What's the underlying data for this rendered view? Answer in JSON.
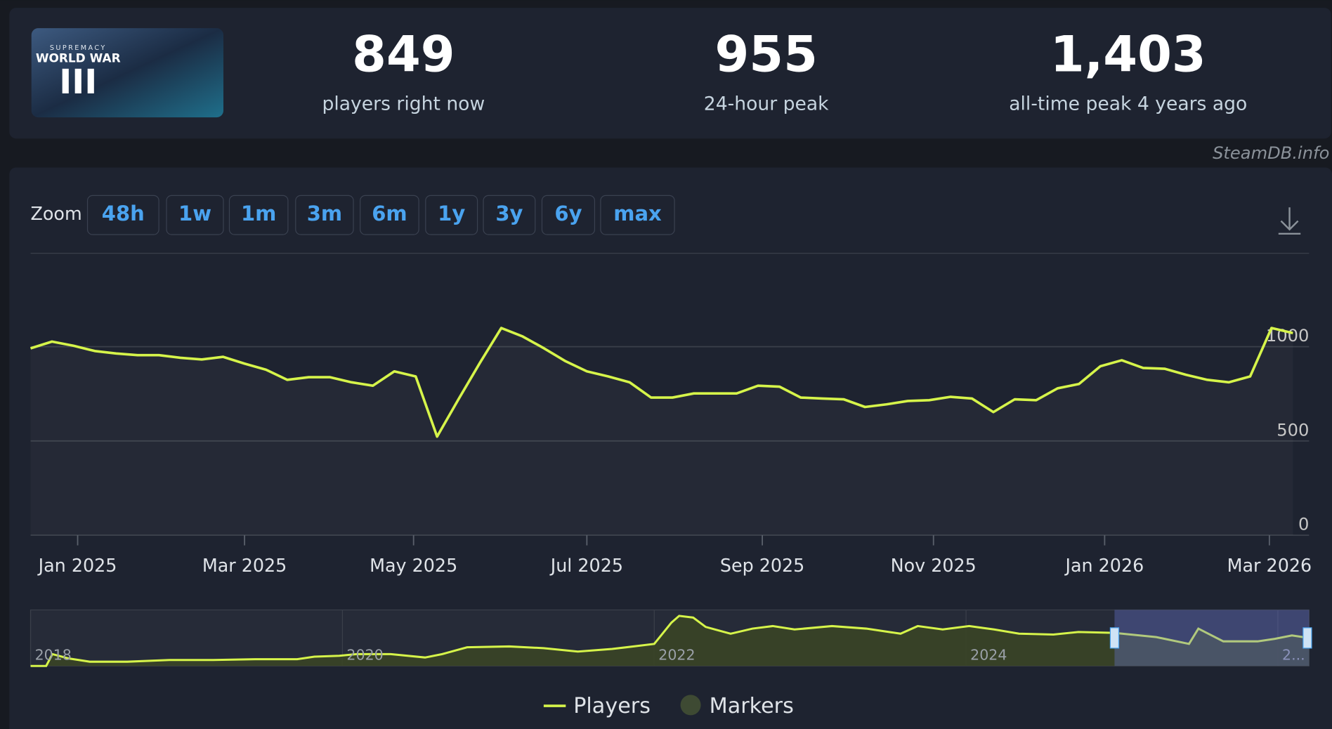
{
  "header": {
    "logo": {
      "brand": "SUPREMACY",
      "title": "WORLD WAR",
      "numeral": "III"
    },
    "stats": [
      {
        "value": "849",
        "label": "players right now"
      },
      {
        "value": "955",
        "label": "24-hour peak"
      },
      {
        "value": "1,403",
        "label": "all-time peak 4 years ago"
      }
    ],
    "source": "SteamDB.info"
  },
  "zoom": {
    "label": "Zoom",
    "buttons": [
      "48h",
      "1w",
      "1m",
      "3m",
      "6m",
      "1y",
      "3y",
      "6y",
      "max"
    ]
  },
  "chart_data": {
    "type": "line",
    "series": [
      {
        "name": "Players",
        "color": "#d6f44a",
        "values": [
          991,
          1027,
          1005,
          977,
          964,
          955,
          955,
          941,
          932,
          946,
          910,
          878,
          824,
          838,
          838,
          811,
          793,
          869,
          842,
          523,
          721,
          914,
          1099,
          1054,
          991,
          923,
          869,
          842,
          811,
          730,
          730,
          752,
          752,
          752,
          793,
          788,
          730,
          725,
          721,
          680,
          694,
          712,
          716,
          734,
          725,
          653,
          721,
          716,
          779,
          802,
          896,
          928,
          887,
          883,
          851,
          824,
          811,
          842,
          1099,
          1072
        ]
      }
    ],
    "markers": {
      "name": "Markers",
      "color": "#3e4a33"
    },
    "xlim": [
      0,
      59
    ],
    "xticks": [
      {
        "value": 2.2,
        "label": "Jan 2025"
      },
      {
        "value": 10.0,
        "label": "Mar 2025"
      },
      {
        "value": 17.9,
        "label": "May 2025"
      },
      {
        "value": 26.0,
        "label": "Jul 2025"
      },
      {
        "value": 34.2,
        "label": "Sep 2025"
      },
      {
        "value": 42.2,
        "label": "Nov 2025"
      },
      {
        "value": 50.2,
        "label": "Jan 2026"
      },
      {
        "value": 57.9,
        "label": "Mar 2026"
      }
    ],
    "ylim": [
      0,
      1500
    ],
    "yticks": [
      0,
      500,
      1000
    ],
    "grid": true,
    "navigator": {
      "color": "#d6f44a",
      "fill": "#3a4426",
      "x": [
        2018.0,
        2018.1,
        2018.14,
        2018.24,
        2018.38,
        2018.62,
        2018.89,
        2019.17,
        2019.44,
        2019.71,
        2019.82,
        2019.98,
        2020.09,
        2020.31,
        2020.53,
        2020.64,
        2020.8,
        2021.07,
        2021.29,
        2021.51,
        2021.73,
        2022.0,
        2022.11,
        2022.16,
        2022.25,
        2022.33,
        2022.49,
        2022.63,
        2022.76,
        2022.9,
        2023.14,
        2023.36,
        2023.58,
        2023.69,
        2023.85,
        2024.02,
        2024.18,
        2024.34,
        2024.56,
        2024.72,
        2024.95,
        2025.22,
        2025.43,
        2025.49,
        2025.65,
        2025.87,
        2025.98,
        2026.09,
        2026.2
      ],
      "values": [
        0,
        0,
        318,
        205,
        114,
        114,
        159,
        159,
        182,
        182,
        250,
        273,
        318,
        318,
        227,
        318,
        500,
        523,
        477,
        386,
        455,
        591,
        1159,
        1341,
        1295,
        1045,
        864,
        1000,
        1068,
        977,
        1068,
        1000,
        864,
        1068,
        977,
        1068,
        977,
        864,
        841,
        909,
        886,
        773,
        591,
        1000,
        659,
        659,
        727,
        818,
        750
      ],
      "xlim": [
        2018,
        2026.2
      ],
      "ylim": [
        0,
        1500
      ],
      "xticks": [
        2018,
        2020,
        2022,
        2024,
        {
          "value": 2026,
          "label": "2..."
        }
      ]
    }
  }
}
